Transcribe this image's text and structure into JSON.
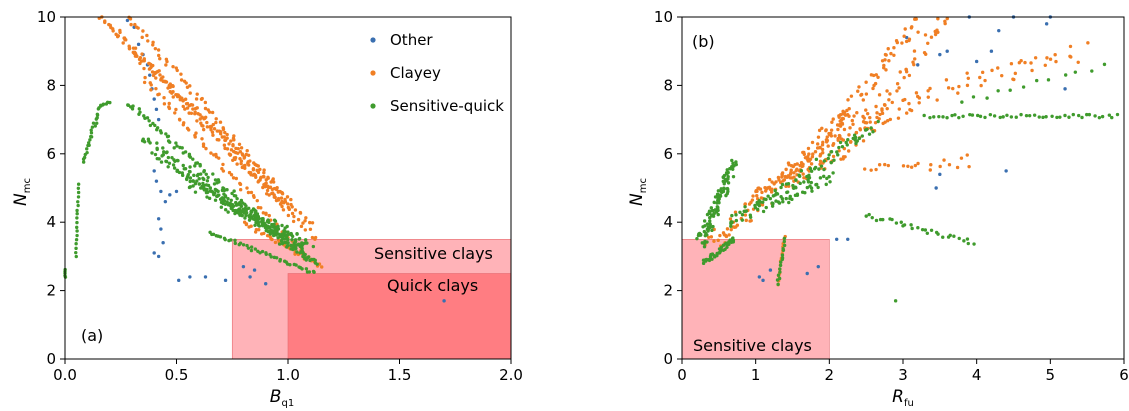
{
  "chart_data": [
    {
      "type": "scatter",
      "panel_label": "(a)",
      "xlabel": "B",
      "xlabel_sub": "q1",
      "ylabel": "N",
      "ylabel_sub": "mc",
      "xlim": [
        0,
        2.0
      ],
      "ylim": [
        0,
        10
      ],
      "xticks": [
        0.0,
        0.5,
        1.0,
        1.5,
        2.0
      ],
      "xtick_labels": [
        "0.0",
        "0.5",
        "1.0",
        "1.5",
        "2.0"
      ],
      "yticks": [
        0,
        2,
        4,
        6,
        8,
        10
      ],
      "ytick_labels": [
        "0",
        "2",
        "4",
        "6",
        "8",
        "10"
      ],
      "legend": {
        "placement": "top-right",
        "entries": [
          "Other",
          "Clayey",
          "Sensitive-quick"
        ]
      },
      "regions": [
        {
          "label": "Sensitive clays",
          "x": [
            0.75,
            2.0
          ],
          "y": [
            0,
            3.5
          ],
          "color": "#ffb3b8"
        },
        {
          "label": "Quick clays",
          "x": [
            1.0,
            2.0
          ],
          "y": [
            0,
            2.5
          ],
          "color": "#ff7d82"
        }
      ],
      "series": [
        {
          "name": "Other",
          "color": "#3a6fb0",
          "points": [
            [
              0.28,
              9.9
            ],
            [
              0.31,
              9.7
            ],
            [
              0.33,
              9.2
            ],
            [
              0.35,
              8.9
            ],
            [
              0.37,
              8.6
            ],
            [
              0.38,
              8.3
            ],
            [
              0.39,
              7.9
            ],
            [
              0.4,
              7.6
            ],
            [
              0.41,
              7.3
            ],
            [
              0.42,
              7.0
            ],
            [
              0.4,
              5.5
            ],
            [
              0.41,
              5.2
            ],
            [
              0.43,
              4.9
            ],
            [
              0.45,
              4.6
            ],
            [
              0.47,
              4.8
            ],
            [
              0.5,
              4.9
            ],
            [
              0.42,
              4.1
            ],
            [
              0.43,
              3.8
            ],
            [
              0.44,
              3.4
            ],
            [
              0.4,
              3.1
            ],
            [
              0.42,
              3.0
            ],
            [
              0.51,
              2.3
            ],
            [
              0.56,
              2.4
            ],
            [
              0.63,
              2.4
            ],
            [
              0.72,
              2.3
            ],
            [
              0.8,
              2.7
            ],
            [
              0.85,
              2.6
            ],
            [
              0.83,
              2.4
            ],
            [
              0.9,
              2.2
            ],
            [
              1.7,
              1.7
            ]
          ]
        },
        {
          "name": "Clayey",
          "color": "#f07f24",
          "bands": [
            {
              "from": [
                0.15,
                10.0
              ],
              "to": [
                0.98,
                4.8
              ],
              "n": 70,
              "spread": 0.15
            },
            {
              "from": [
                0.2,
                9.8
              ],
              "to": [
                1.0,
                4.5
              ],
              "n": 70,
              "spread": 0.15
            },
            {
              "from": [
                0.28,
                10.0
              ],
              "to": [
                1.1,
                3.9
              ],
              "n": 80,
              "spread": 0.15
            },
            {
              "from": [
                0.3,
                9.0
              ],
              "to": [
                1.12,
                3.5
              ],
              "n": 80,
              "spread": 0.15
            },
            {
              "from": [
                0.35,
                8.2
              ],
              "to": [
                1.08,
                3.0
              ],
              "n": 70,
              "spread": 0.15
            },
            {
              "from": [
                0.75,
                5.9
              ],
              "to": [
                1.0,
                4.5
              ],
              "n": 25,
              "spread": 0.12
            },
            {
              "from": [
                0.8,
                4.0
              ],
              "to": [
                1.15,
                2.7
              ],
              "n": 35,
              "spread": 0.1
            }
          ]
        },
        {
          "name": "Sensitive-quick",
          "color": "#3f9b2d",
          "bands": [
            {
              "from": [
                0.0,
                2.4
              ],
              "to": [
                0.0,
                2.6
              ],
              "n": 5,
              "spread": 0.03
            },
            {
              "from": [
                0.05,
                3.0
              ],
              "to": [
                0.06,
                5.1
              ],
              "n": 18,
              "spread": 0.03
            },
            {
              "from": [
                0.08,
                5.8
              ],
              "to": [
                0.16,
                7.4
              ],
              "n": 25,
              "spread": 0.08
            },
            {
              "from": [
                0.16,
                7.4
              ],
              "to": [
                0.2,
                7.5
              ],
              "n": 6,
              "spread": 0.05
            },
            {
              "from": [
                0.28,
                7.5
              ],
              "to": [
                1.05,
                3.1
              ],
              "n": 90,
              "spread": 0.15
            },
            {
              "from": [
                0.35,
                6.5
              ],
              "to": [
                1.12,
                2.9
              ],
              "n": 90,
              "spread": 0.15
            },
            {
              "from": [
                0.4,
                6.0
              ],
              "to": [
                1.12,
                2.8
              ],
              "n": 90,
              "spread": 0.15
            },
            {
              "from": [
                0.55,
                5.2
              ],
              "to": [
                1.05,
                3.5
              ],
              "n": 70,
              "spread": 0.25
            },
            {
              "from": [
                0.7,
                4.6
              ],
              "to": [
                1.1,
                3.3
              ],
              "n": 60,
              "spread": 0.25
            },
            {
              "from": [
                0.65,
                3.7
              ],
              "to": [
                1.12,
                2.5
              ],
              "n": 45,
              "spread": 0.08
            }
          ]
        }
      ]
    },
    {
      "type": "scatter",
      "panel_label": "(b)",
      "xlabel": "R",
      "xlabel_sub": "fu",
      "ylabel": "N",
      "ylabel_sub": "mc",
      "xlim": [
        0,
        6
      ],
      "ylim": [
        0,
        10
      ],
      "xticks": [
        0,
        1,
        2,
        3,
        4,
        5,
        6
      ],
      "xtick_labels": [
        "0",
        "1",
        "2",
        "3",
        "4",
        "5",
        "6"
      ],
      "yticks": [
        0,
        2,
        4,
        6,
        8,
        10
      ],
      "ytick_labels": [
        "0",
        "2",
        "4",
        "6",
        "8",
        "10"
      ],
      "regions": [
        {
          "label": "Sensitive clays",
          "x": [
            0,
            2.0
          ],
          "y": [
            0,
            3.5
          ],
          "color": "#ffb3b8"
        }
      ],
      "series": [
        {
          "name": "Other",
          "color": "#3a6fb0",
          "points": [
            [
              1.05,
              2.4
            ],
            [
              1.1,
              2.3
            ],
            [
              1.2,
              2.6
            ],
            [
              1.7,
              2.5
            ],
            [
              1.85,
              2.7
            ],
            [
              2.1,
              3.5
            ],
            [
              2.25,
              3.5
            ],
            [
              3.45,
              5.0
            ],
            [
              3.5,
              5.4
            ],
            [
              4.4,
              5.5
            ],
            [
              3.2,
              8.6
            ],
            [
              3.5,
              8.9
            ],
            [
              3.6,
              9.0
            ],
            [
              3.9,
              10.0
            ],
            [
              4.0,
              8.7
            ],
            [
              4.2,
              9.0
            ],
            [
              4.3,
              9.6
            ],
            [
              4.5,
              10.0
            ],
            [
              4.95,
              9.8
            ],
            [
              5.0,
              10.0
            ],
            [
              5.2,
              7.9
            ],
            [
              3.05,
              9.4
            ]
          ]
        },
        {
          "name": "Clayey",
          "color": "#f07f24",
          "bands": [
            {
              "from": [
                0.4,
                3.3
              ],
              "to": [
                2.3,
                7.2
              ],
              "n": 110,
              "spread": 0.45
            },
            {
              "from": [
                1.0,
                4.6
              ],
              "to": [
                3.0,
                7.5
              ],
              "n": 90,
              "spread": 0.5
            },
            {
              "from": [
                1.5,
                5.2
              ],
              "to": [
                3.2,
                9.8
              ],
              "n": 80,
              "spread": 0.35
            },
            {
              "from": [
                2.0,
                5.6
              ],
              "to": [
                3.6,
                10.0
              ],
              "n": 55,
              "spread": 0.3
            },
            {
              "from": [
                3.0,
                7.5
              ],
              "to": [
                5.4,
                9.0
              ],
              "n": 45,
              "spread": 0.5
            },
            {
              "from": [
                2.5,
                5.5
              ],
              "to": [
                3.9,
                5.8
              ],
              "n": 20,
              "spread": 0.3
            },
            {
              "from": [
                1.3,
                2.2
              ],
              "to": [
                1.4,
                3.6
              ],
              "n": 14,
              "spread": 0.05
            }
          ]
        },
        {
          "name": "Sensitive-quick",
          "color": "#3f9b2d",
          "bands": [
            {
              "from": [
                0.25,
                3.4
              ],
              "to": [
                0.7,
                5.7
              ],
              "n": 110,
              "spread": 0.25
            },
            {
              "from": [
                0.3,
                2.8
              ],
              "to": [
                0.7,
                3.5
              ],
              "n": 40,
              "spread": 0.12
            },
            {
              "from": [
                0.6,
                4.0
              ],
              "to": [
                2.0,
                5.3
              ],
              "n": 70,
              "spread": 0.3
            },
            {
              "from": [
                1.2,
                4.6
              ],
              "to": [
                2.6,
                6.8
              ],
              "n": 60,
              "spread": 0.3
            },
            {
              "from": [
                1.3,
                2.2
              ],
              "to": [
                1.4,
                3.5
              ],
              "n": 16,
              "spread": 0.05
            },
            {
              "from": [
                2.5,
                4.2
              ],
              "to": [
                3.95,
                3.4
              ],
              "n": 30,
              "spread": 0.12
            },
            {
              "from": [
                3.3,
                7.1
              ],
              "to": [
                5.9,
                7.1
              ],
              "n": 45,
              "spread": 0.08
            },
            {
              "from": [
                3.8,
                7.5
              ],
              "to": [
                5.7,
                8.6
              ],
              "n": 12,
              "spread": 0.15
            },
            {
              "from": [
                2.9,
                1.7
              ],
              "to": [
                2.9,
                1.7
              ],
              "n": 1,
              "spread": 0.0
            }
          ]
        }
      ]
    }
  ]
}
